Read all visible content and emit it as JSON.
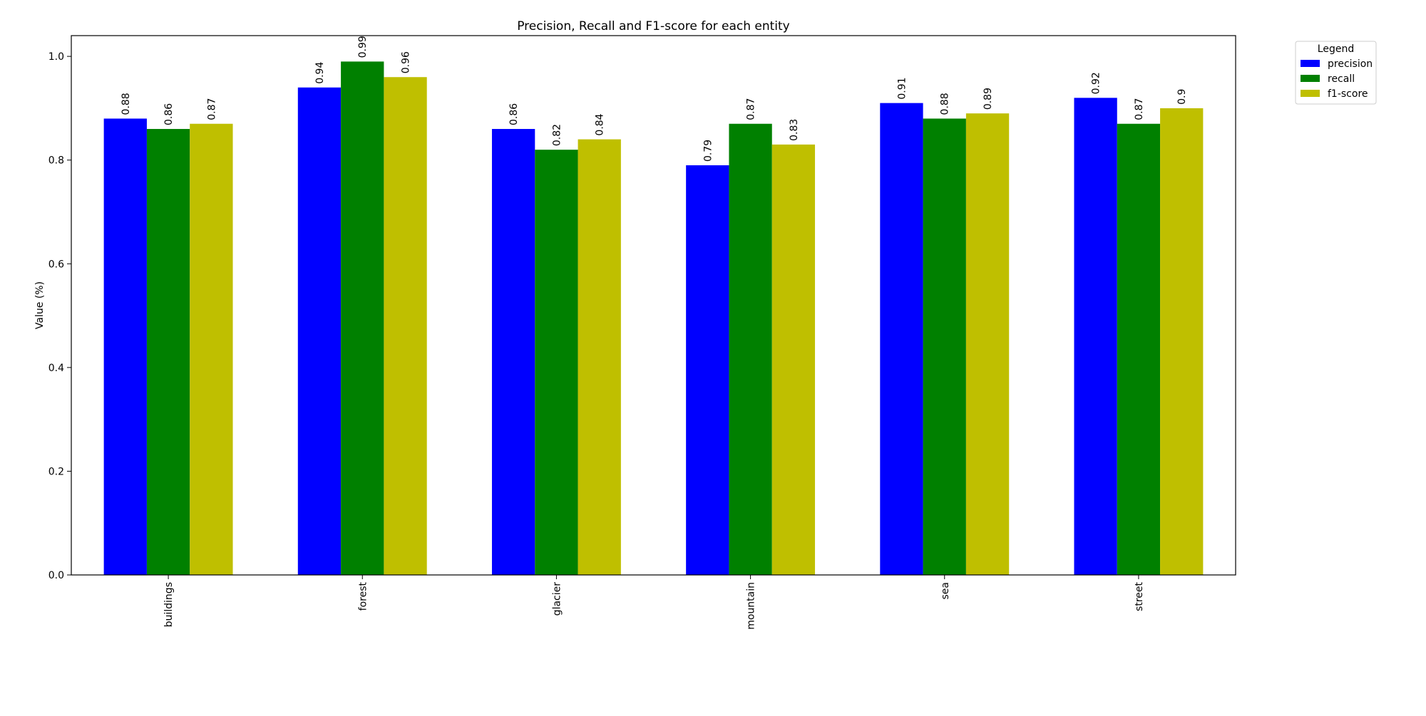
{
  "chart_data": {
    "type": "bar",
    "title": "Precision, Recall and F1-score for each entity",
    "xlabel": "",
    "ylabel": "Value (%)",
    "ylim": [
      0.0,
      1.04
    ],
    "yticks": [
      0.0,
      0.2,
      0.4,
      0.6,
      0.8,
      1.0
    ],
    "ytick_labels": [
      "0.0",
      "0.2",
      "0.4",
      "0.6",
      "0.8",
      "1.0"
    ],
    "grid": false,
    "categories": [
      "buildings",
      "forest",
      "glacier",
      "mountain",
      "sea",
      "street"
    ],
    "series": [
      {
        "name": "precision",
        "color": "#0000ff",
        "values": [
          0.88,
          0.94,
          0.86,
          0.79,
          0.91,
          0.92
        ],
        "labels": [
          "0.88",
          "0.94",
          "0.86",
          "0.79",
          "0.91",
          "0.92"
        ]
      },
      {
        "name": "recall",
        "color": "#008000",
        "values": [
          0.86,
          0.99,
          0.82,
          0.87,
          0.88,
          0.87
        ],
        "labels": [
          "0.86",
          "0.99",
          "0.82",
          "0.87",
          "0.88",
          "0.87"
        ]
      },
      {
        "name": "f1-score",
        "color": "#bfbf00",
        "values": [
          0.87,
          0.96,
          0.84,
          0.83,
          0.89,
          0.9
        ],
        "labels": [
          "0.87",
          "0.96",
          "0.84",
          "0.83",
          "0.89",
          "0.9"
        ]
      }
    ],
    "legend": {
      "title": "Legend",
      "placement": "outside-top-right"
    }
  }
}
